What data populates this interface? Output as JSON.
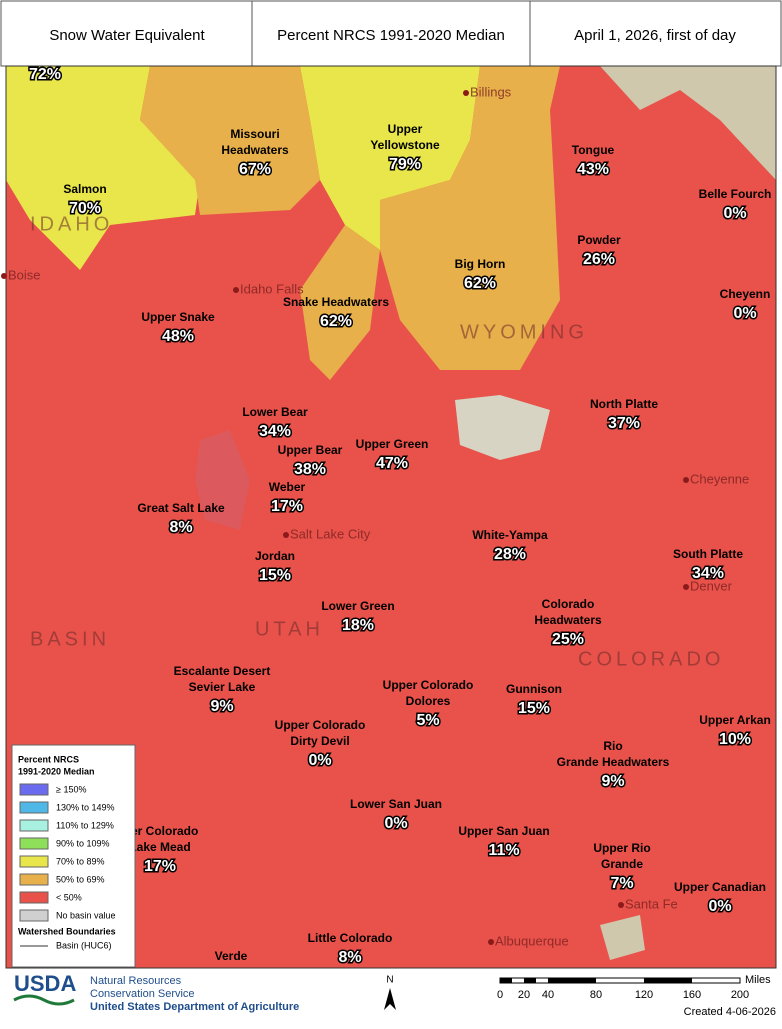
{
  "header": {
    "title": "Snow Water Equivalent",
    "metric": "Percent NRCS 1991-2020 Median",
    "date": "April 1, 2026, first of day"
  },
  "basins": [
    {
      "name": [
        "Salmon"
      ],
      "value": "70%"
    },
    {
      "name": [
        "Missouri",
        "Headwaters"
      ],
      "value": "67%"
    },
    {
      "name": [
        "Upper",
        "Yellowstone"
      ],
      "value": "79%"
    },
    {
      "name": [
        "Tongue"
      ],
      "value": "43%"
    },
    {
      "name": [
        "Belle Fourch"
      ],
      "value": "0%"
    },
    {
      "name": [
        "Big Horn"
      ],
      "value": "62%"
    },
    {
      "name": [
        "Powder"
      ],
      "value": "26%"
    },
    {
      "name": [
        "Cheyenn"
      ],
      "value": "0%"
    },
    {
      "name": [
        "Upper Snake"
      ],
      "value": "48%"
    },
    {
      "name": [
        "Snake Headwaters"
      ],
      "value": "62%"
    },
    {
      "name": [
        "Lower Bear"
      ],
      "value": "34%"
    },
    {
      "name": [
        "Upper Bear"
      ],
      "value": "38%"
    },
    {
      "name": [
        "Upper Green"
      ],
      "value": "47%"
    },
    {
      "name": [
        "North Platte"
      ],
      "value": "37%"
    },
    {
      "name": [
        "Weber"
      ],
      "value": "17%"
    },
    {
      "name": [
        "Great Salt Lake"
      ],
      "value": "8%"
    },
    {
      "name": [
        "White-Yampa"
      ],
      "value": "28%"
    },
    {
      "name": [
        "South Platte"
      ],
      "value": "34%"
    },
    {
      "name": [
        "Jordan"
      ],
      "value": "15%"
    },
    {
      "name": [
        "Lower Green"
      ],
      "value": "18%"
    },
    {
      "name": [
        "Colorado",
        "Headwaters"
      ],
      "value": "25%"
    },
    {
      "name": [
        "Escalante Desert",
        "Sevier Lake"
      ],
      "value": "9%"
    },
    {
      "name": [
        "Upper Colorado",
        "Dolores"
      ],
      "value": "5%"
    },
    {
      "name": [
        "Gunnison"
      ],
      "value": "15%"
    },
    {
      "name": [
        "Upper Colorado",
        "Dirty Devil"
      ],
      "value": "0%"
    },
    {
      "name": [
        "Upper Arkan"
      ],
      "value": "10%"
    },
    {
      "name": [
        "Rio",
        "Grande Headwaters"
      ],
      "value": "9%"
    },
    {
      "name": [
        "Lower San Juan"
      ],
      "value": "0%"
    },
    {
      "name": [
        "Upper San Juan"
      ],
      "value": "11%"
    },
    {
      "name": [
        "wer Colorado",
        "Lake Mead"
      ],
      "value": "17%"
    },
    {
      "name": [
        "Upper Rio",
        "Grande"
      ],
      "value": "7%"
    },
    {
      "name": [
        "Upper Canadian"
      ],
      "value": "0%"
    },
    {
      "name": [
        "Little Colorado"
      ],
      "value": "8%"
    },
    {
      "name": [
        "Verde"
      ],
      "value": null
    },
    {
      "name": [],
      "value": "72%"
    }
  ],
  "places": [
    "Billings",
    "Boise",
    "Idaho Falls",
    "Salt Lake City",
    "Cheyenne",
    "Denver",
    "Santa Fe",
    "Albuquerque",
    "IDAHO",
    "WYOMING",
    "UTAH",
    "COLORADO",
    "BASIN"
  ],
  "legend": {
    "title": [
      "Percent NRCS",
      "1991-2020 Median"
    ],
    "items": [
      {
        "label": "≥ 150%",
        "color": "#6b6bf0"
      },
      {
        "label": "130% to 149%",
        "color": "#4fb8e6"
      },
      {
        "label": "110% to 129%",
        "color": "#a8f0e0"
      },
      {
        "label": "90% to 109%",
        "color": "#8ee05a"
      },
      {
        "label": "70% to 89%",
        "color": "#e8e64a"
      },
      {
        "label": "50% to 69%",
        "color": "#e8b04a"
      },
      {
        "label": "< 50%",
        "color": "#e8524a"
      },
      {
        "label": "No basin value",
        "color": "#d0d0d0"
      }
    ],
    "boundaries_title": "Watershed Boundaries",
    "boundary": "Basin (HUC6)"
  },
  "footer": {
    "logo": "USDA",
    "agency": [
      "Natural Resources",
      "Conservation Service"
    ],
    "department": "United States Department of Agriculture",
    "north": "N",
    "scale_ticks": [
      "0",
      "20",
      "40",
      "80",
      "120",
      "160",
      "200"
    ],
    "scale_unit": "Miles",
    "created": "Created 4-06-2026"
  }
}
